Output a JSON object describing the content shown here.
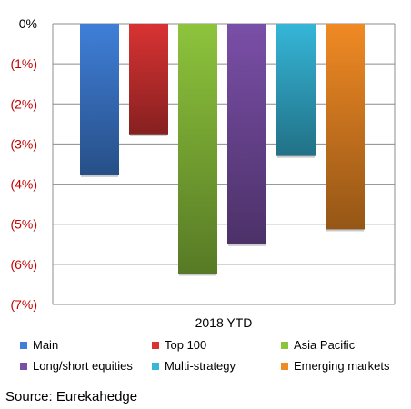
{
  "chart_data": {
    "type": "bar",
    "categories": [
      "2018 YTD"
    ],
    "series": [
      {
        "name": "Main",
        "values": [
          -3.78
        ],
        "color": "#3f7fd9"
      },
      {
        "name": "Top 100",
        "values": [
          -2.76
        ],
        "color": "#d93333"
      },
      {
        "name": "Asia Pacific",
        "values": [
          -6.24
        ],
        "color": "#8dc43c"
      },
      {
        "name": "Long/short equities",
        "values": [
          -5.5
        ],
        "color": "#7a4fa8"
      },
      {
        "name": "Multi-strategy",
        "values": [
          -3.3
        ],
        "color": "#36b6d8"
      },
      {
        "name": "Emerging markets",
        "values": [
          -5.13
        ],
        "color": "#f08a24"
      }
    ],
    "ylim": [
      -7,
      0
    ],
    "yticks": [
      0,
      -1,
      -2,
      -3,
      -4,
      -5,
      -6,
      -7
    ],
    "ytick_labels": [
      "0%",
      "(1%)",
      "(2%)",
      "(3%)",
      "(4%)",
      "(5%)",
      "(6%)",
      "(7%)"
    ],
    "ytick_colors": [
      "#000000",
      "#c00000",
      "#c00000",
      "#c00000",
      "#c00000",
      "#c00000",
      "#c00000",
      "#c00000"
    ],
    "grid": true,
    "legend": "bottom"
  },
  "source": "Source: Eurekahedge"
}
